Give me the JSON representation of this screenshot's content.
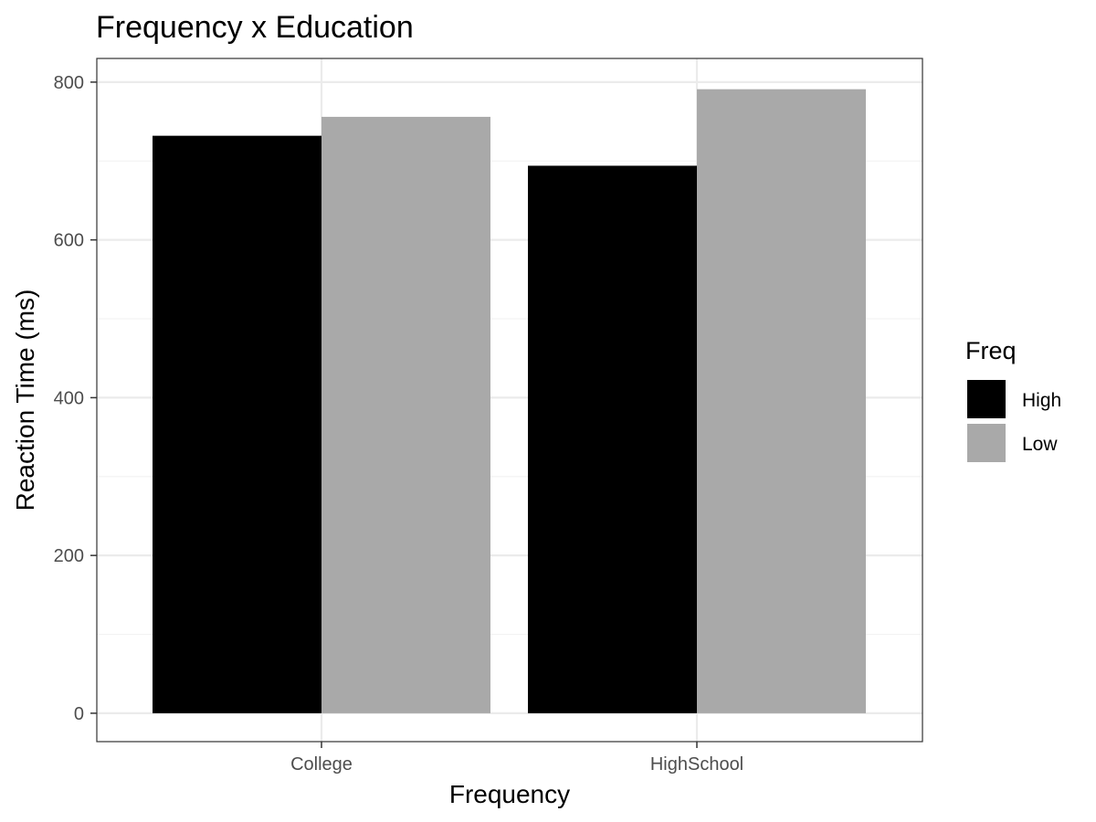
{
  "chart_data": {
    "type": "bar",
    "title": "Frequency x Education",
    "xlabel": "Frequency",
    "ylabel": "Reaction Time (ms)",
    "categories": [
      "College",
      "HighSchool"
    ],
    "series": [
      {
        "name": "High",
        "values": [
          732,
          694
        ],
        "color": "#000000"
      },
      {
        "name": "Low",
        "values": [
          756,
          791
        ],
        "color": "#a9a9a9"
      }
    ],
    "ylim": [
      -36,
      830
    ],
    "yticks": [
      0,
      200,
      400,
      600,
      800
    ],
    "ytick_labels": [
      "0",
      "200",
      "400",
      "600",
      "800"
    ],
    "grid": true,
    "legend": {
      "title": "Freq",
      "position": "right",
      "entries": [
        "High",
        "Low"
      ]
    }
  }
}
